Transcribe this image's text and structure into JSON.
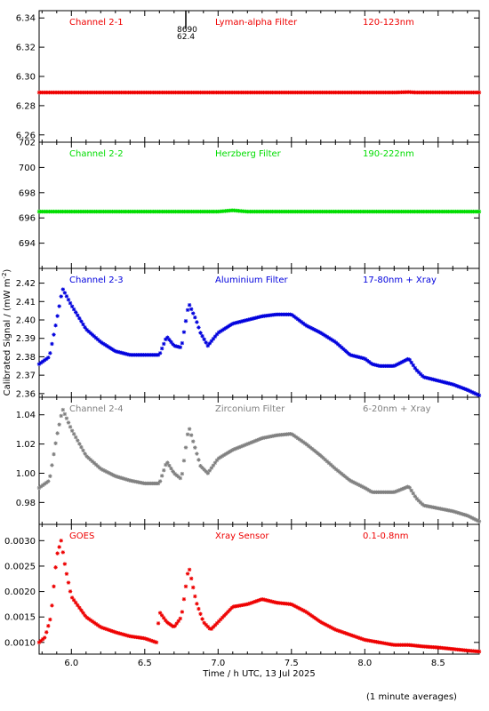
{
  "y_axis_label": "Calibrated Signal / (mW m",
  "y_axis_label_sup": "-2",
  "y_axis_label_end": ")",
  "footnote": "(1 minute averages)",
  "chart_data": {
    "type": "scatter",
    "xlabel": "Time / h UTC, 13 Jul 2025",
    "xlim": [
      5.78,
      8.78
    ],
    "xticks": [
      6.0,
      6.5,
      7.0,
      7.5,
      8.0,
      8.5
    ],
    "xtick_labels": [
      "6.0",
      "6.5",
      "7.0",
      "7.5",
      "8.0",
      "8.5"
    ],
    "panels": [
      {
        "channel": "Channel 2-1",
        "filter": "Lyman-alpha Filter",
        "band": "120-123nm",
        "color": "#ee0000",
        "ylim": [
          6.255,
          6.345
        ],
        "yticks": [
          6.26,
          6.28,
          6.3,
          6.32,
          6.34
        ],
        "ytick_labels": [
          "6.26",
          "6.28",
          "6.30",
          "6.32",
          "6.34"
        ],
        "marker_annotation": {
          "x": 6.78,
          "lines": [
            "8690",
            "62.4"
          ]
        },
        "series": [
          {
            "x": [
              5.78,
              6.5,
              7.0,
              7.5,
              8.0,
              8.2,
              8.3,
              8.35,
              8.78
            ],
            "y": [
              6.289,
              6.289,
              6.289,
              6.289,
              6.289,
              6.289,
              6.2893,
              6.289,
              6.289
            ]
          }
        ]
      },
      {
        "channel": "Channel 2-2",
        "filter": "Herzberg Filter",
        "band": "190-222nm",
        "color": "#00dd00",
        "ylim": [
          692.0,
          702.0
        ],
        "yticks": [
          694,
          696,
          698,
          700,
          702
        ],
        "ytick_labels": [
          "694",
          "696",
          "698",
          "700",
          "702"
        ],
        "series": [
          {
            "x": [
              5.78,
              6.5,
              7.0,
              7.1,
              7.2,
              7.5,
              8.0,
              8.78
            ],
            "y": [
              696.5,
              696.5,
              696.5,
              696.6,
              696.5,
              696.5,
              696.5,
              696.5
            ]
          }
        ]
      },
      {
        "channel": "Channel 2-3",
        "filter": "Aluminium Filter",
        "band": "17-80nm + Xray",
        "color": "#0000dd",
        "ylim": [
          2.358,
          2.428
        ],
        "yticks": [
          2.36,
          2.37,
          2.38,
          2.39,
          2.4,
          2.41,
          2.42
        ],
        "ytick_labels": [
          "2.36",
          "2.37",
          "2.38",
          "2.39",
          "2.40",
          "2.41",
          "2.42"
        ],
        "series": [
          {
            "x": [
              5.78,
              5.85,
              5.9,
              5.94,
              6.0,
              6.1,
              6.2,
              6.3,
              6.4,
              6.5,
              6.6,
              6.65,
              6.7,
              6.75,
              6.8,
              6.85,
              6.88,
              6.93,
              7.0,
              7.1,
              7.2,
              7.3,
              7.4,
              7.5,
              7.6,
              7.7,
              7.8,
              7.9,
              8.0,
              8.05,
              8.1,
              8.2,
              8.3,
              8.35,
              8.4,
              8.5,
              8.6,
              8.7,
              8.78
            ],
            "y": [
              2.376,
              2.38,
              2.4,
              2.417,
              2.408,
              2.395,
              2.388,
              2.383,
              2.381,
              2.381,
              2.381,
              2.391,
              2.386,
              2.385,
              2.409,
              2.4,
              2.393,
              2.386,
              2.393,
              2.398,
              2.4,
              2.402,
              2.403,
              2.403,
              2.397,
              2.393,
              2.388,
              2.381,
              2.379,
              2.376,
              2.375,
              2.375,
              2.379,
              2.373,
              2.369,
              2.367,
              2.365,
              2.362,
              2.359
            ]
          }
        ]
      },
      {
        "channel": "Channel 2-4",
        "filter": "Zirconium Filter",
        "band": "6-20nm + Xray",
        "color": "#808080",
        "ylim": [
          0.965,
          1.052
        ],
        "yticks": [
          0.98,
          1.0,
          1.02,
          1.04
        ],
        "ytick_labels": [
          "0.98",
          "1.00",
          "1.02",
          "1.04"
        ],
        "series": [
          {
            "x": [
              5.78,
              5.85,
              5.9,
              5.94,
              6.0,
              6.1,
              6.2,
              6.3,
              6.4,
              6.5,
              6.6,
              6.65,
              6.7,
              6.75,
              6.8,
              6.85,
              6.88,
              6.93,
              7.0,
              7.1,
              7.2,
              7.3,
              7.4,
              7.5,
              7.6,
              7.7,
              7.8,
              7.9,
              8.0,
              8.05,
              8.1,
              8.2,
              8.3,
              8.35,
              8.4,
              8.5,
              8.6,
              8.7,
              8.78
            ],
            "y": [
              0.99,
              0.995,
              1.025,
              1.044,
              1.03,
              1.012,
              1.003,
              0.998,
              0.995,
              0.993,
              0.993,
              1.008,
              1.0,
              0.996,
              1.032,
              1.015,
              1.005,
              1.0,
              1.01,
              1.016,
              1.02,
              1.024,
              1.026,
              1.027,
              1.02,
              1.012,
              1.003,
              0.995,
              0.99,
              0.987,
              0.987,
              0.987,
              0.991,
              0.983,
              0.978,
              0.976,
              0.974,
              0.971,
              0.967
            ]
          }
        ]
      },
      {
        "channel": "GOES",
        "filter": "Xray Sensor",
        "band": "0.1-0.8nm",
        "color": "#ee0000",
        "ylim": [
          0.00077,
          0.00332
        ],
        "yticks": [
          0.001,
          0.0015,
          0.002,
          0.0025,
          0.003
        ],
        "ytick_labels": [
          "0.0010",
          "0.0015",
          "0.0020",
          "0.0025",
          "0.0030"
        ],
        "series": [
          {
            "x": [
              5.78,
              5.82,
              5.86,
              5.9,
              5.93,
              5.96,
              6.0,
              6.1,
              6.2,
              6.3,
              6.4,
              6.5,
              6.58,
              6.6,
              6.65,
              6.7,
              6.75,
              6.8,
              6.85,
              6.9,
              6.95,
              7.0,
              7.1,
              7.2,
              7.3,
              7.4,
              7.5,
              7.6,
              7.7,
              7.8,
              7.9,
              8.0,
              8.1,
              8.2,
              8.3,
              8.4,
              8.5,
              8.6,
              8.7,
              8.78
            ],
            "y": [
              0.001,
              0.0011,
              0.0015,
              0.0027,
              0.003,
              0.00245,
              0.0019,
              0.0015,
              0.0013,
              0.0012,
              0.00112,
              0.00108,
              0.001,
              0.0016,
              0.0014,
              0.0013,
              0.0015,
              0.0025,
              0.0018,
              0.0014,
              0.00125,
              0.0014,
              0.0017,
              0.00175,
              0.00185,
              0.00178,
              0.00175,
              0.0016,
              0.0014,
              0.00125,
              0.00115,
              0.00105,
              0.001,
              0.00095,
              0.00095,
              0.00092,
              0.0009,
              0.00087,
              0.00084,
              0.00082
            ]
          }
        ]
      }
    ]
  }
}
